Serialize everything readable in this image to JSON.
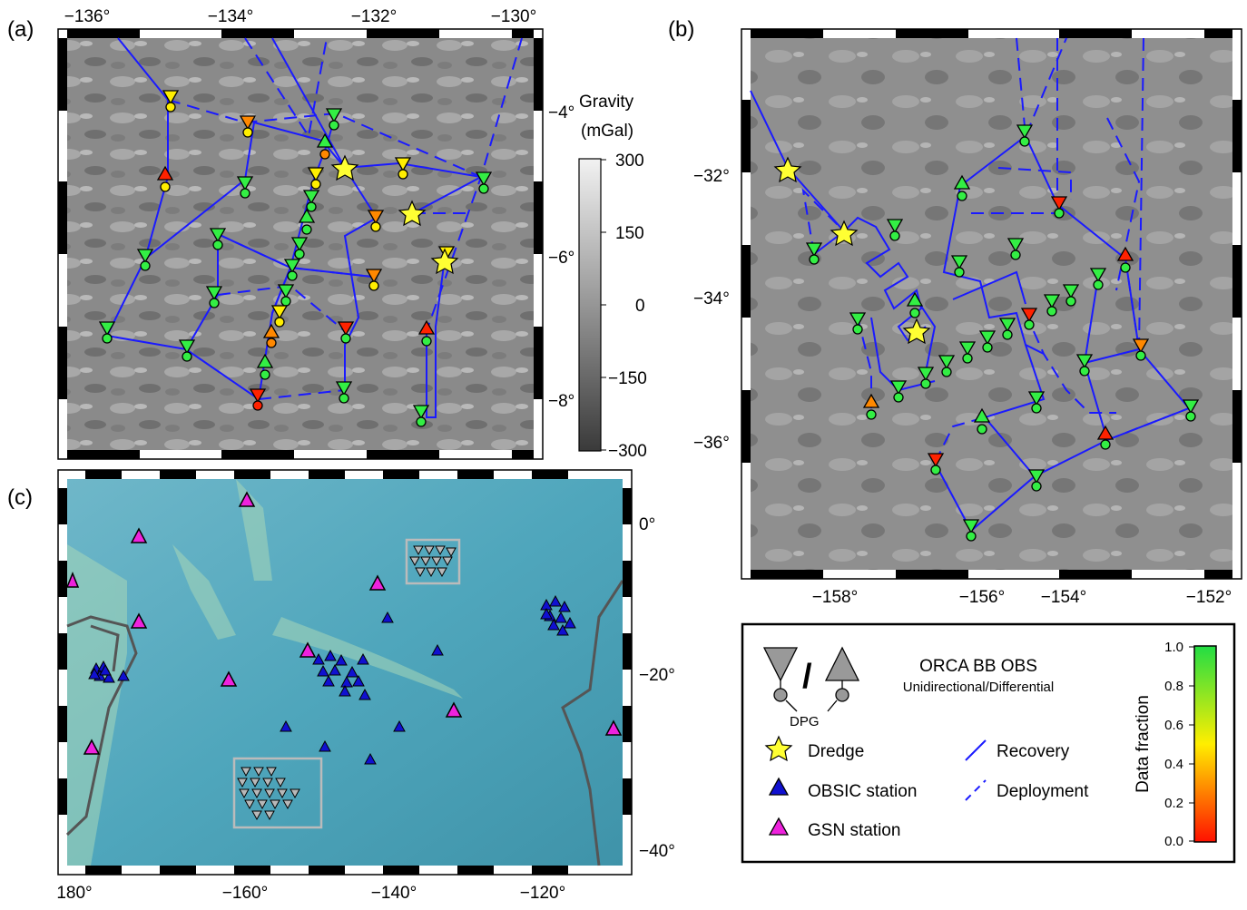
{
  "panels": {
    "a": {
      "label": "(a)",
      "x_ticks": [
        "−136°",
        "−134°",
        "−132°",
        "−130°"
      ],
      "y_ticks": [
        "−4°",
        "−6°",
        "−8°"
      ]
    },
    "b": {
      "label": "(b)",
      "x_ticks": [
        "−158°",
        "−156°",
        "−154°",
        "−152°"
      ],
      "y_ticks": [
        "−32°",
        "−34°",
        "−36°"
      ]
    },
    "c": {
      "label": "(c)",
      "x_ticks": [
        "180°",
        "−160°",
        "−140°",
        "−120°"
      ],
      "y_ticks": [
        "0°",
        "−20°",
        "−40°"
      ]
    }
  },
  "gravity_colorbar": {
    "title_line1": "Gravity",
    "title_line2": "(mGal)",
    "ticks": [
      "300",
      "150",
      "0",
      "−150",
      "−300"
    ]
  },
  "legend": {
    "obs_title": "ORCA BB OBS",
    "obs_subtitle": "Unidirectional/Differential",
    "slash": "/",
    "dpg_label": "DPG",
    "dredge_label": "Dredge",
    "obsic_label": "OBSIC station",
    "gsn_label": "GSN station",
    "recovery_label": "Recovery",
    "deployment_label": "Deployment",
    "colorbar_title": "Data fraction",
    "colorbar_ticks": [
      "1.0",
      "0.8",
      "0.6",
      "0.4",
      "0.2",
      "0.0"
    ]
  },
  "colors": {
    "route": "#1a1aff",
    "dredge_star": "#ffff33",
    "obsic": "#1010d0",
    "gsn": "#ee22dd",
    "good": "#33ee44",
    "mid": "#ffee00",
    "orange": "#ff8800",
    "bad": "#ff2200"
  }
}
